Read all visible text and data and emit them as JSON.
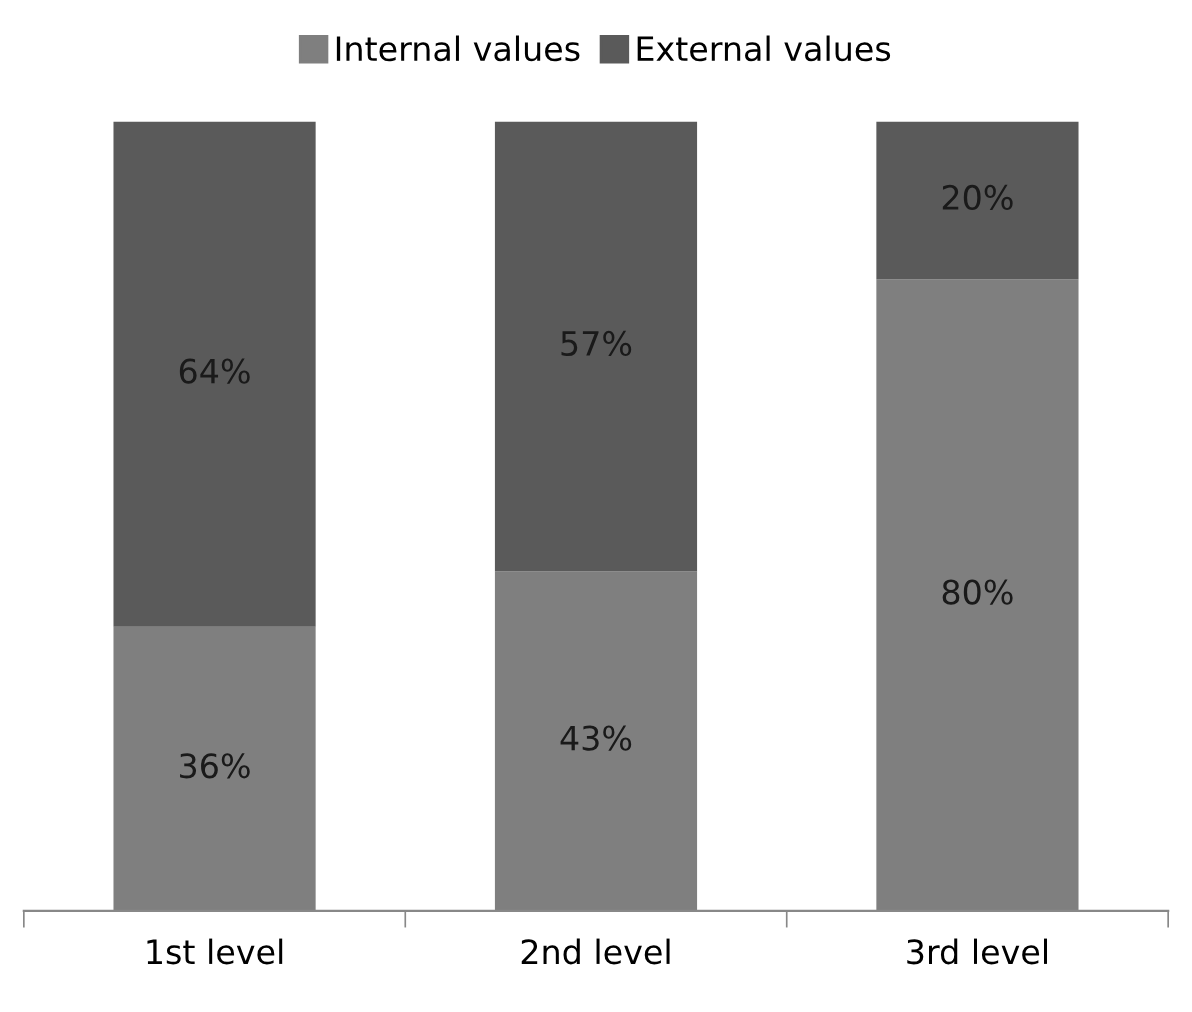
{
  "chart_data": {
    "type": "bar",
    "stacked": true,
    "categories": [
      "1st level",
      "2nd level",
      "3rd level"
    ],
    "series": [
      {
        "name": "Internal values",
        "color": "#7f7f7f",
        "values": [
          36,
          43,
          80
        ],
        "value_labels": [
          "36%",
          "43%",
          "80%"
        ]
      },
      {
        "name": "External values",
        "color": "#5a5a5a",
        "values": [
          64,
          57,
          20
        ],
        "value_labels": [
          "64%",
          "57%",
          "20%"
        ]
      }
    ],
    "ylim": [
      0,
      100
    ],
    "grid": false,
    "legend": "top"
  }
}
